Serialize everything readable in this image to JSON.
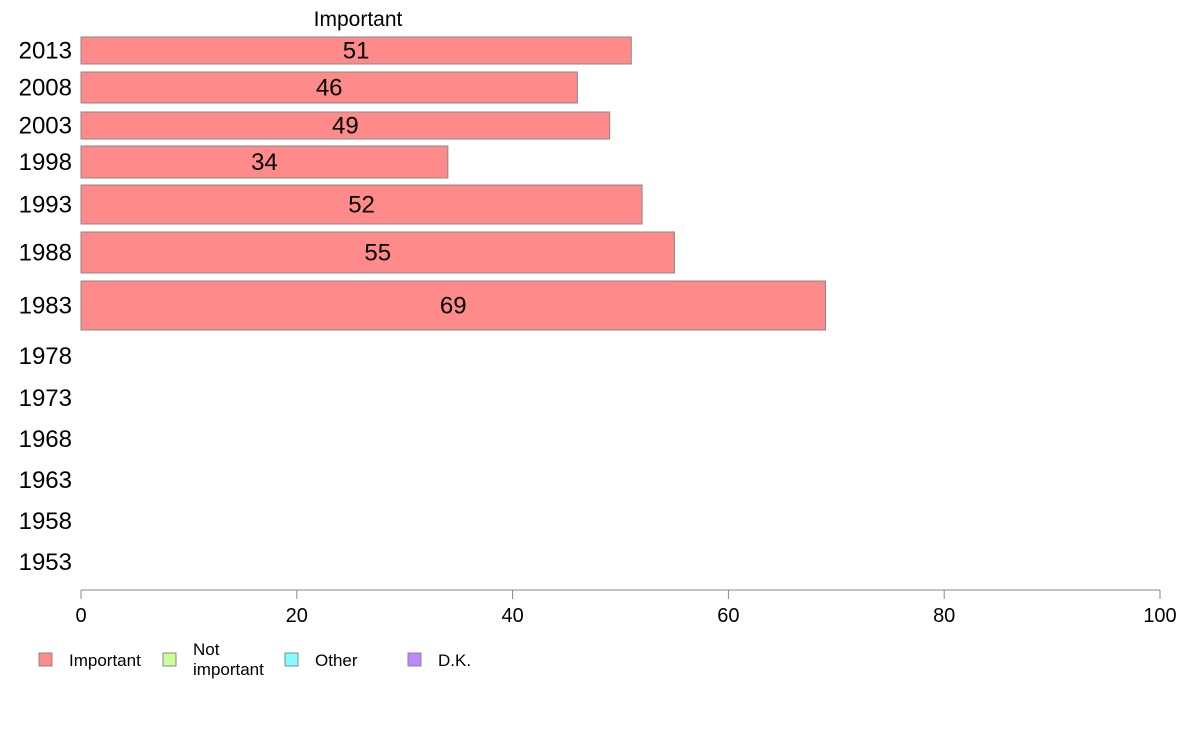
{
  "chart_data": {
    "type": "bar",
    "orientation": "horizontal",
    "title": "Important",
    "categories": [
      "2013",
      "2008",
      "2003",
      "1998",
      "1993",
      "1988",
      "1983",
      "1978",
      "1973",
      "1968",
      "1963",
      "1958",
      "1953"
    ],
    "series": [
      {
        "name": "Important",
        "values": [
          51,
          46,
          49,
          34,
          52,
          55,
          69,
          null,
          null,
          null,
          null,
          null,
          null
        ]
      }
    ],
    "data_labels": [
      "51",
      "46",
      "49",
      "34",
      "52",
      "55",
      "69"
    ],
    "xlim": [
      0,
      100
    ],
    "xticks": [
      0,
      20,
      40,
      60,
      80,
      100
    ],
    "legend": {
      "placement": "bottom-left",
      "entries": [
        {
          "label": "Important",
          "color": "#ff8a8a"
        },
        {
          "label": "Not important",
          "color": "#ccff99"
        },
        {
          "label": "Other",
          "color": "#80ffff"
        },
        {
          "label": "D.K.",
          "color": "#bb88ff"
        }
      ]
    },
    "grid": false,
    "colors": {
      "bar": "#ff8a8a",
      "bar_border": "#888888",
      "axis": "#888888"
    }
  }
}
